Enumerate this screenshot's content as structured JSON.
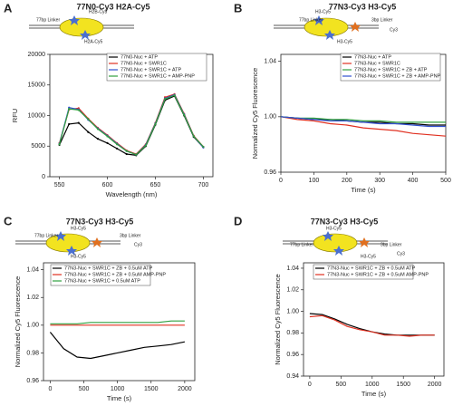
{
  "chart_data": [
    {
      "type": "line",
      "panel": "A",
      "title": "77N0-Cy3 H2A-Cy5",
      "diagram_labels": [
        "77bp Linker",
        "H2B-Cy3",
        "H2A-Cy5"
      ],
      "x_label": "Wavelength (nm)",
      "y_label": "RFU",
      "xlim": [
        540,
        710
      ],
      "xticks": [
        550,
        600,
        650,
        700
      ],
      "ylim": [
        0,
        20000
      ],
      "yticks": [
        0,
        5000,
        10000,
        15000,
        20000
      ],
      "x": [
        550,
        560,
        570,
        580,
        590,
        600,
        610,
        620,
        630,
        640,
        650,
        660,
        670,
        680,
        690,
        700
      ],
      "series": [
        {
          "name": "77N0-Nuc + ATP",
          "color": "#000000",
          "values": [
            5200,
            8600,
            8800,
            7300,
            6200,
            5500,
            4600,
            3700,
            3500,
            5000,
            8500,
            12500,
            13200,
            10000,
            6500,
            4800
          ]
        },
        {
          "name": "77N0-Nuc + SWR1C",
          "color": "#e03020",
          "values": [
            5500,
            11000,
            11200,
            9500,
            8000,
            6800,
            5500,
            4300,
            3700,
            5300,
            8800,
            13000,
            13500,
            10300,
            6700,
            4900
          ]
        },
        {
          "name": "77N0-Nuc + SWR1C + ATP",
          "color": "#3050d0",
          "values": [
            5400,
            11300,
            11000,
            9300,
            7900,
            6700,
            5400,
            4200,
            3600,
            5200,
            8700,
            12800,
            13400,
            10200,
            6600,
            4800
          ]
        },
        {
          "name": "77N0-Nuc + SWR1C + AMP-PNP",
          "color": "#30a040",
          "values": [
            5300,
            11100,
            10900,
            9400,
            7800,
            6600,
            5300,
            4200,
            3600,
            5100,
            8600,
            12700,
            13300,
            10100,
            6600,
            4900
          ]
        }
      ]
    },
    {
      "type": "line",
      "panel": "B",
      "title": "77N3-Cy3 H3-Cy5",
      "diagram_labels": [
        "77bp Linker",
        "H3-Cy5",
        "3bp Linker",
        "H3-Cy5",
        "Cy3"
      ],
      "x_label": "Time (s)",
      "y_label": "Normalized Cy5 Fluorescence",
      "xlim": [
        0,
        500
      ],
      "xticks": [
        0,
        100,
        200,
        300,
        400,
        500
      ],
      "ylim": [
        0.96,
        1.045
      ],
      "yticks": [
        0.96,
        {
          "value": 1,
          "label": "1.00"
        },
        1.04
      ],
      "x": [
        0,
        50,
        100,
        150,
        200,
        250,
        300,
        350,
        400,
        450,
        500
      ],
      "series": [
        {
          "name": "77N3-Nuc + ATP",
          "color": "#000000",
          "values": [
            1.0,
            0.999,
            0.998,
            0.998,
            0.997,
            0.996,
            0.996,
            0.995,
            0.995,
            0.994,
            0.994
          ]
        },
        {
          "name": "77N3-Nuc + SWR1C",
          "color": "#e03020",
          "values": [
            1.0,
            0.998,
            0.997,
            0.995,
            0.994,
            0.992,
            0.991,
            0.99,
            0.988,
            0.987,
            0.986
          ]
        },
        {
          "name": "77N3-Nuc + SWR1C + ZB + ATP",
          "color": "#30a040",
          "values": [
            1.0,
            0.999,
            0.999,
            0.998,
            0.998,
            0.997,
            0.997,
            0.996,
            0.996,
            0.996,
            0.996
          ]
        },
        {
          "name": "77N3-Nuc + SWR1C + ZB + AMP-PNP",
          "color": "#3050d0",
          "values": [
            1.0,
            0.999,
            0.998,
            0.997,
            0.997,
            0.996,
            0.995,
            0.995,
            0.994,
            0.993,
            0.993
          ]
        }
      ]
    },
    {
      "type": "line",
      "panel": "C",
      "title": "77N3-Cy3 H3-Cy5",
      "diagram_labels": [
        "77bp Linker",
        "H3-Cy5",
        "3bp Linker",
        "H3-Cy5",
        "Cy3"
      ],
      "x_label": "Time (s)",
      "y_label": "Normalized Cy5 Fluorescence",
      "xlim": [
        -100,
        2150
      ],
      "xticks": [
        0,
        500,
        1000,
        1500,
        2000
      ],
      "ylim": [
        0.96,
        1.045
      ],
      "yticks": [
        0.96,
        0.98,
        {
          "value": 1,
          "label": "1.00"
        },
        1.02,
        1.04
      ],
      "x": [
        0,
        200,
        400,
        600,
        800,
        1000,
        1200,
        1400,
        1600,
        1800,
        2000
      ],
      "series": [
        {
          "name": "77N3-Nuc + SWR1C + ZB + 0.5uM ATP",
          "color": "#000000",
          "values": [
            0.995,
            0.983,
            0.977,
            0.976,
            0.978,
            0.98,
            0.982,
            0.984,
            0.985,
            0.986,
            0.988
          ]
        },
        {
          "name": "77N3-Nuc + SWR1C + ZB + 0.5uM AMP-PNP",
          "color": "#e03020",
          "values": [
            1.0,
            1.0,
            1.0,
            1.0,
            1.0,
            1.0,
            1.0,
            1.0,
            1.0,
            1.0,
            1.0
          ]
        },
        {
          "name": "77N3-Nuc + SWR1C + 0.5uM ATP",
          "color": "#30a040",
          "values": [
            1.001,
            1.001,
            1.001,
            1.002,
            1.002,
            1.002,
            1.002,
            1.002,
            1.002,
            1.003,
            1.003
          ]
        }
      ]
    },
    {
      "type": "line",
      "panel": "D",
      "title": "77N3-Cy3 H3-Cy5",
      "diagram_labels": [
        "77bp Linker",
        "H3-Cy5",
        "3bp Linker",
        "H3-Cy5",
        "Cy3"
      ],
      "x_label": "Time (s)",
      "y_label": "Normalized Cy5 Fluorescence",
      "xlim": [
        -100,
        2150
      ],
      "xticks": [
        0,
        500,
        1000,
        1500,
        2000
      ],
      "ylim": [
        0.94,
        1.045
      ],
      "yticks": [
        0.94,
        0.96,
        0.98,
        {
          "value": 1,
          "label": "1.00"
        },
        1.02,
        1.04
      ],
      "x": [
        0,
        200,
        400,
        600,
        800,
        1000,
        1200,
        1400,
        1600,
        1800,
        2000
      ],
      "series": [
        {
          "name": "77N3-Nuc + SWR1C + ZB + 0.5uM ATP",
          "color": "#000000",
          "values": [
            0.998,
            0.997,
            0.993,
            0.988,
            0.984,
            0.981,
            0.979,
            0.978,
            0.978,
            0.978,
            0.978
          ]
        },
        {
          "name": "77N3-Nuc + SWR1C + ZB + 0.5uM AMP-PNP",
          "color": "#e03020",
          "values": [
            0.995,
            0.996,
            0.992,
            0.986,
            0.983,
            0.981,
            0.978,
            0.978,
            0.977,
            0.978,
            0.978
          ]
        }
      ]
    }
  ]
}
